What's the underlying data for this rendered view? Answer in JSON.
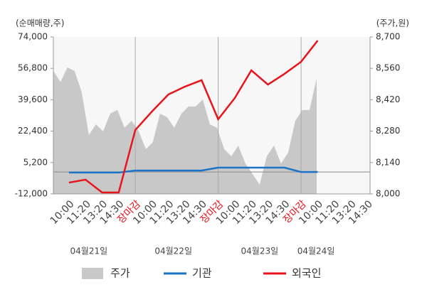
{
  "chart_data": {
    "type": "line",
    "y_label": "(순매매량,주)",
    "y2_label": "(주가,원)",
    "categories": [
      "10:00",
      "11:20",
      "13:20",
      "14:30",
      "장마감",
      "10:00",
      "11:20",
      "13:20",
      "14:30",
      "장마감",
      "10:00",
      "11:20",
      "13:20",
      "14:30",
      "장마감",
      "10:00",
      "11:20",
      "13:20",
      "14:30"
    ],
    "dates": [
      "04월21일",
      "04월22일",
      "04월23일",
      "04월24일"
    ],
    "xlim": [
      -0.94,
      18.16
    ],
    "ylim": [
      -12000,
      74000
    ],
    "yticks": [
      {
        "value": -12000,
        "label": "-12,000"
      },
      {
        "value": 5200,
        "label": "5,200"
      },
      {
        "value": 22400,
        "label": "22,400"
      },
      {
        "value": 39600,
        "label": "39,600"
      },
      {
        "value": 56800,
        "label": "56,800"
      },
      {
        "value": 74000,
        "label": "74,000"
      }
    ],
    "y2lim": [
      8000,
      8700
    ],
    "y2ticks": [
      {
        "value": 8000,
        "label": "8,000"
      },
      {
        "value": 8140,
        "label": "8,140"
      },
      {
        "value": 8280,
        "label": "8,280"
      },
      {
        "value": 8420,
        "label": "8,420"
      },
      {
        "value": 8560,
        "label": "8,560"
      },
      {
        "value": 8700,
        "label": "8,700"
      }
    ],
    "legend": "bottom",
    "series": [
      {
        "name": "주가",
        "type": "area",
        "axis": "y2",
        "color": "#c8c8c8",
        "x": [
          -0.94,
          -0.51,
          -0.09,
          0.34,
          0.77,
          1.2,
          1.63,
          2.06,
          2.49,
          2.92,
          3.35,
          3.78,
          4.21,
          4.64,
          5.06,
          5.49,
          5.92,
          6.35,
          6.78,
          7.21,
          7.64,
          8.07,
          8.5,
          8.93,
          9.36,
          9.79,
          10.21,
          10.64,
          11.07,
          11.5,
          11.93,
          12.36,
          12.79,
          13.22,
          13.65,
          14.08,
          14.51,
          14.94
        ],
        "values": [
          8548,
          8500,
          8564,
          8548,
          8453,
          8263,
          8310,
          8279,
          8358,
          8374,
          8295,
          8326,
          8279,
          8200,
          8231,
          8358,
          8342,
          8295,
          8358,
          8390,
          8390,
          8421,
          8310,
          8295,
          8200,
          8168,
          8215,
          8136,
          8089,
          8041,
          8168,
          8215,
          8136,
          8184,
          8326,
          8374,
          8374,
          8516
        ]
      },
      {
        "name": "기관",
        "color": "#1a73c6",
        "values": [
          -300,
          -300,
          -300,
          -300,
          800,
          800,
          800,
          800,
          800,
          2400,
          2400,
          2400,
          2400,
          2400,
          0,
          0,
          null,
          null,
          null
        ]
      },
      {
        "name": "외국인",
        "color": "#e8141c",
        "values": [
          -5800,
          -4200,
          -11200,
          -11200,
          23000,
          33100,
          42500,
          46800,
          50300,
          28900,
          40500,
          55700,
          47900,
          53800,
          60400,
          72000,
          null,
          null,
          null
        ]
      }
    ]
  }
}
